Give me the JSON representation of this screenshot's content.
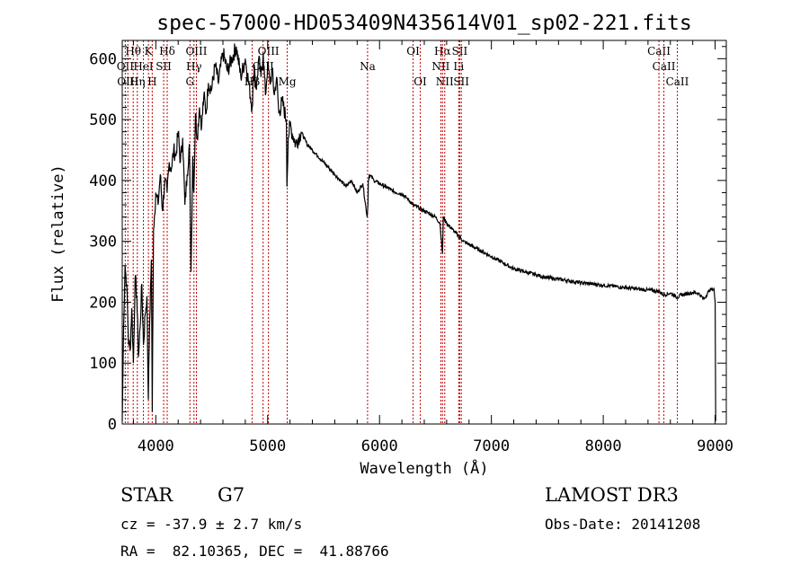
{
  "chart_data": {
    "type": "line",
    "title": "spec-57000-HD053409N435614V01_sp02-221.fits",
    "xlabel": "Wavelength (Å)",
    "ylabel": "Flux (relative)",
    "xlim": [
      3700,
      9100
    ],
    "ylim": [
      0,
      630
    ],
    "xticks": [
      4000,
      5000,
      6000,
      7000,
      8000,
      9000
    ],
    "yticks": [
      0,
      100,
      200,
      300,
      400,
      500,
      600
    ],
    "series": [
      {
        "name": "flux",
        "x": [
          3700,
          3712,
          3725,
          3740,
          3755,
          3770,
          3785,
          3800,
          3815,
          3830,
          3845,
          3860,
          3875,
          3890,
          3905,
          3920,
          3933,
          3945,
          3960,
          3968,
          3980,
          4000,
          4020,
          4040,
          4060,
          4080,
          4101,
          4120,
          4140,
          4160,
          4180,
          4200,
          4220,
          4240,
          4260,
          4280,
          4300,
          4315,
          4330,
          4340,
          4355,
          4370,
          4390,
          4410,
          4430,
          4450,
          4470,
          4500,
          4530,
          4560,
          4600,
          4640,
          4680,
          4720,
          4760,
          4800,
          4830,
          4861,
          4880,
          4900,
          4920,
          4940,
          4960,
          4980,
          5000,
          5020,
          5040,
          5060,
          5080,
          5100,
          5130,
          5167,
          5172,
          5183,
          5200,
          5250,
          5300,
          5350,
          5400,
          5450,
          5500,
          5550,
          5600,
          5650,
          5700,
          5750,
          5800,
          5850,
          5890,
          5896,
          5900,
          5910,
          5950,
          6000,
          6050,
          6100,
          6150,
          6200,
          6250,
          6300,
          6350,
          6400,
          6450,
          6500,
          6540,
          6563,
          6570,
          6600,
          6650,
          6700,
          6750,
          6800,
          6900,
          7000,
          7100,
          7200,
          7300,
          7400,
          7500,
          7600,
          7700,
          7800,
          7900,
          8000,
          8100,
          8200,
          8300,
          8400,
          8498,
          8542,
          8600,
          8662,
          8700,
          8750,
          8800,
          8850,
          8900,
          8950,
          8990,
          9000,
          9005
        ],
        "values": [
          5,
          160,
          260,
          230,
          140,
          120,
          190,
          100,
          240,
          210,
          110,
          160,
          230,
          130,
          180,
          210,
          40,
          170,
          270,
          20,
          320,
          380,
          360,
          410,
          350,
          400,
          380,
          430,
          420,
          450,
          440,
          480,
          430,
          470,
          360,
          410,
          460,
          250,
          440,
          380,
          510,
          470,
          520,
          490,
          540,
          510,
          560,
          550,
          590,
          560,
          610,
          580,
          600,
          620,
          570,
          600,
          560,
          520,
          590,
          550,
          600,
          570,
          610,
          540,
          590,
          560,
          580,
          540,
          570,
          510,
          530,
          500,
          390,
          470,
          490,
          460,
          480,
          460,
          450,
          440,
          430,
          420,
          410,
          400,
          390,
          400,
          380,
          395,
          340,
          360,
          400,
          410,
          400,
          395,
          390,
          385,
          380,
          378,
          370,
          360,
          355,
          350,
          345,
          340,
          330,
          280,
          340,
          330,
          320,
          310,
          300,
          295,
          285,
          275,
          265,
          255,
          250,
          245,
          240,
          238,
          235,
          232,
          230,
          228,
          226,
          224,
          222,
          220,
          218,
          212,
          215,
          208,
          212,
          214,
          216,
          215,
          205,
          220,
          222,
          200,
          5
        ]
      }
    ],
    "lines": [
      {
        "label": "Hθ",
        "x": 3798,
        "row": 1
      },
      {
        "label": "K",
        "x": 3934,
        "row": 1
      },
      {
        "label": "Hδ",
        "x": 4102,
        "row": 1
      },
      {
        "label": "OIII",
        "x": 4363,
        "row": 1
      },
      {
        "label": "OIII",
        "x": 5007,
        "row": 1
      },
      {
        "label": "OI",
        "x": 6300,
        "row": 1
      },
      {
        "label": "Hα",
        "x": 6563,
        "row": 1
      },
      {
        "label": "SII",
        "x": 6717,
        "row": 1
      },
      {
        "label": "CaII",
        "x": 8498,
        "row": 1
      },
      {
        "label": "OII",
        "x": 3727,
        "row": 2
      },
      {
        "label": "HeI",
        "x": 3889,
        "row": 2
      },
      {
        "label": "SII",
        "x": 4070,
        "row": 2
      },
      {
        "label": "Hγ",
        "x": 4341,
        "row": 2
      },
      {
        "label": "OIII",
        "x": 4959,
        "row": 2
      },
      {
        "label": "Na",
        "x": 5893,
        "row": 2
      },
      {
        "label": "NII",
        "x": 6548,
        "row": 2
      },
      {
        "label": "Li",
        "x": 6708,
        "row": 2
      },
      {
        "label": "CaII",
        "x": 8542,
        "row": 2
      },
      {
        "label": "OIII",
        "x": 3750,
        "row": 3
      },
      {
        "label": "Hη",
        "x": 3835,
        "row": 3
      },
      {
        "label": "H",
        "x": 3968,
        "row": 3
      },
      {
        "label": "G",
        "x": 4305,
        "row": 3
      },
      {
        "label": "Hβ",
        "x": 4861,
        "row": 3
      },
      {
        "label": "Mg",
        "x": 5175,
        "row": 3
      },
      {
        "label": "OI",
        "x": 6364,
        "row": 3
      },
      {
        "label": "NII",
        "x": 6583,
        "row": 3
      },
      {
        "label": "SII",
        "x": 6731,
        "row": 3
      },
      {
        "label": "CaII",
        "x": 8662,
        "row": 3
      }
    ]
  },
  "info": {
    "object_class": "STAR",
    "subclass": "G7",
    "survey": "LAMOST DR3",
    "velocity": "cz = -37.9 ± 2.7 km/s",
    "obs_date": "Obs-Date: 20141208",
    "coords": "RA =  82.10365, DEC =  41.88766"
  }
}
